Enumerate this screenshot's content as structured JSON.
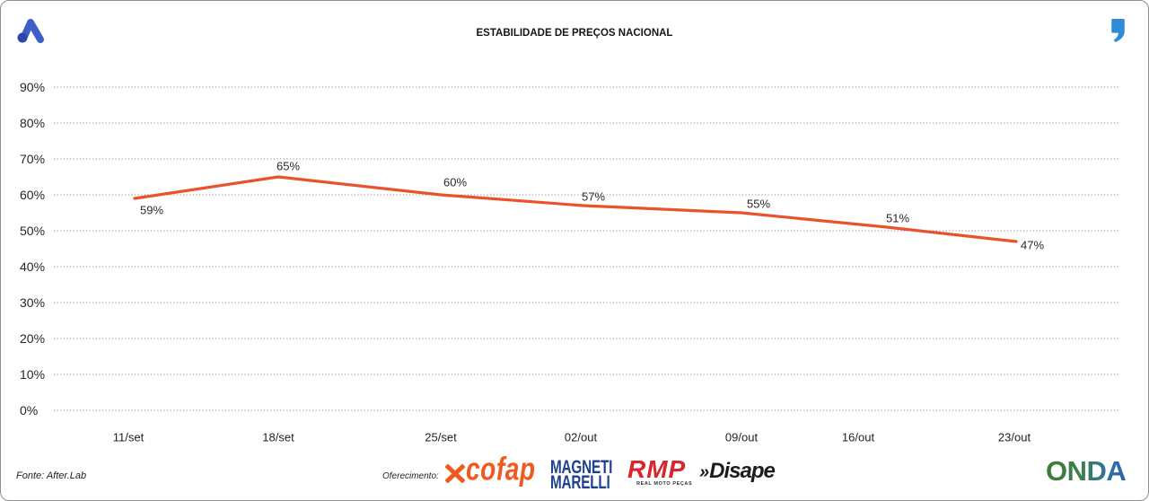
{
  "colors": {
    "series_line": "#e9522b",
    "gridline": "#8d8d8d",
    "brand_blue": "#3c5fc9",
    "quote_blue": "#2d8bd8",
    "cofap_orange": "#f05a22",
    "magneti_blue": "#1f3f8f",
    "rmp_red": "#d9252b",
    "frame_border": "#8f8f8f"
  },
  "icons": {
    "brand": "brand-a-icon",
    "corner": "quote-mark-icon",
    "cofap": "cofap-x-icon"
  },
  "chart_data": {
    "type": "line",
    "title": "ESTABILIDADE DE PREÇOS NACIONAL",
    "xlabel": "",
    "ylabel": "",
    "categories": [
      "11/set",
      "18/set",
      "25/set",
      "02/out",
      "09/out",
      "16/out",
      "23/out"
    ],
    "values": [
      59,
      65,
      60,
      57,
      55,
      51,
      47
    ],
    "data_labels": [
      "59%",
      "65%",
      "60%",
      "57%",
      "55%",
      "51%",
      "47%"
    ],
    "ylim": [
      0,
      90
    ],
    "yticks": [
      0,
      10,
      20,
      30,
      40,
      50,
      60,
      70,
      80,
      90
    ],
    "ytick_labels": [
      "0%",
      "10%",
      "20%",
      "30%",
      "40%",
      "50%",
      "60%",
      "70%",
      "80%",
      "90%"
    ],
    "grid": true,
    "legend": "none"
  },
  "footer": {
    "source": "Fonte: After.Lab",
    "sponsor_label": "Oferecimento:",
    "sponsor_logos": {
      "cofap": "cofap",
      "magneti_line1": "MAGNETI",
      "magneti_line2": "MARELLI",
      "rmp": "RMP",
      "rmp_tagline": "REAL MOTO PEÇAS",
      "disape_mark": "»",
      "disape": "Disape"
    },
    "brand_logo": "ONDA"
  }
}
